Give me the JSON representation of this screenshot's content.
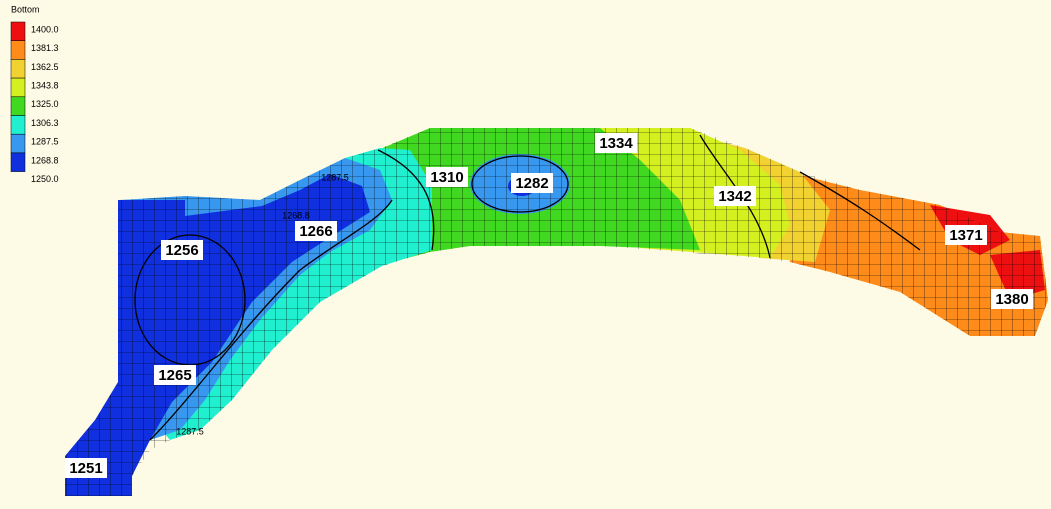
{
  "legend": {
    "title": "Bottom",
    "labels": [
      "1400.0",
      "1381.3",
      "1362.5",
      "1343.8",
      "1325.0",
      "1306.3",
      "1287.5",
      "1268.8",
      "1250.0"
    ],
    "colors": [
      "#ee1010",
      "#ff8c1a",
      "#f2d230",
      "#d4f020",
      "#40d820",
      "#20f0d0",
      "#3898f0",
      "#1030e0"
    ]
  },
  "contour_labels": [
    "1256",
    "1266",
    "1310",
    "1282",
    "1334",
    "1342",
    "1371",
    "1380",
    "1265",
    "1251"
  ],
  "minor_labels": [
    "1287.5",
    "1268.8",
    "1287.5"
  ]
}
